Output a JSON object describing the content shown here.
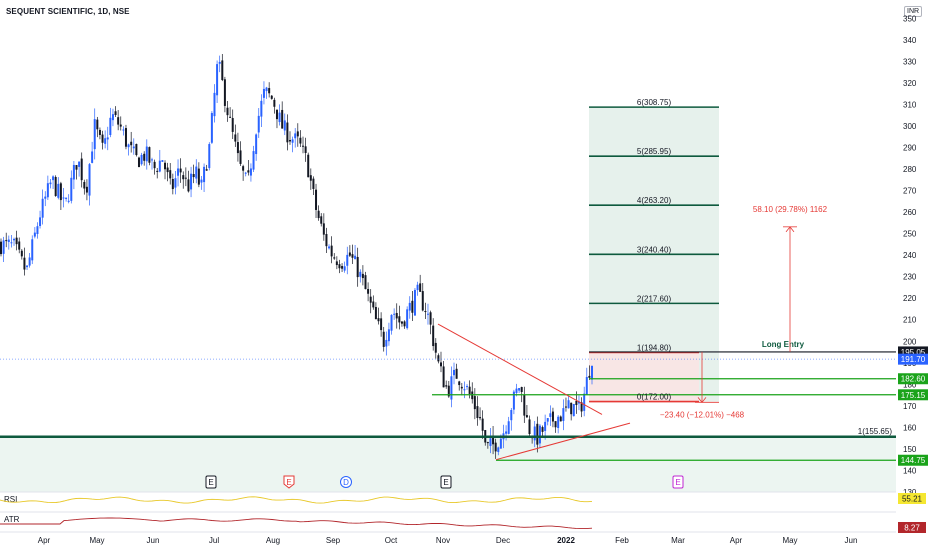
{
  "header": {
    "title": "SEQUENT SCIENTIFIC, 1D, NSE",
    "currency": "INR"
  },
  "colors": {
    "up": "#2962ff",
    "down": "#131722",
    "green": "#1aa31a",
    "dark_green": "#0e5a3e",
    "red": "#e53935",
    "fib_zone": "#e6f1ec",
    "loss_zone": "#fde4e4",
    "rsi": "#e8c829",
    "atr": "#b2262b"
  },
  "chart_data": {
    "type": "candlestick",
    "price_range": [
      130,
      352
    ],
    "y_ticks": [
      130,
      140,
      150,
      160,
      170,
      180,
      190,
      200,
      210,
      220,
      230,
      240,
      250,
      260,
      270,
      280,
      290,
      300,
      310,
      320,
      330,
      340,
      350
    ],
    "x_labels": [
      "Apr",
      "May",
      "Jun",
      "Jul",
      "Aug",
      "Sep",
      "Oct",
      "Nov",
      "Dec",
      "2022",
      "Feb",
      "Mar",
      "Apr",
      "May",
      "Jun"
    ],
    "price_path": [
      [
        0,
        245
      ],
      [
        3,
        244
      ],
      [
        6,
        232
      ],
      [
        9,
        258
      ],
      [
        12,
        275
      ],
      [
        15,
        262
      ],
      [
        18,
        285
      ],
      [
        20,
        270
      ],
      [
        22,
        300
      ],
      [
        24,
        288
      ],
      [
        26,
        305
      ],
      [
        28,
        300
      ],
      [
        30,
        290
      ],
      [
        32,
        284
      ],
      [
        34,
        287
      ],
      [
        36,
        280
      ],
      [
        38,
        285
      ],
      [
        40,
        270
      ],
      [
        42,
        280
      ],
      [
        44,
        272
      ],
      [
        46,
        278
      ],
      [
        47,
        270
      ],
      [
        49,
        290
      ],
      [
        50,
        310
      ],
      [
        51,
        330
      ],
      [
        52,
        320
      ],
      [
        54,
        300
      ],
      [
        56,
        282
      ],
      [
        58,
        272
      ],
      [
        60,
        300
      ],
      [
        62,
        316
      ],
      [
        64,
        312
      ],
      [
        66,
        300
      ],
      [
        68,
        295
      ],
      [
        70,
        292
      ],
      [
        72,
        283
      ],
      [
        74,
        262
      ],
      [
        76,
        248
      ],
      [
        78,
        240
      ],
      [
        80,
        237
      ],
      [
        82,
        240
      ],
      [
        84,
        233
      ],
      [
        86,
        222
      ],
      [
        88,
        210
      ],
      [
        90,
        200
      ],
      [
        92,
        215
      ],
      [
        94,
        208
      ],
      [
        96,
        215
      ],
      [
        98,
        222
      ],
      [
        100,
        215
      ],
      [
        101,
        207
      ],
      [
        103,
        188
      ],
      [
        105,
        177
      ],
      [
        107,
        185
      ],
      [
        109,
        180
      ],
      [
        111,
        172
      ],
      [
        113,
        162
      ],
      [
        114,
        150
      ],
      [
        116,
        152
      ],
      [
        118,
        157
      ],
      [
        120,
        170
      ],
      [
        122,
        180
      ],
      [
        123,
        170
      ],
      [
        124,
        160
      ],
      [
        126,
        155
      ],
      [
        128,
        160
      ],
      [
        130,
        164
      ],
      [
        132,
        166
      ],
      [
        134,
        170
      ],
      [
        136,
        168
      ],
      [
        137,
        174
      ],
      [
        139,
        193
      ]
    ],
    "earnings_markers": [
      {
        "label": "E",
        "x": 211,
        "style": "dark"
      },
      {
        "label": "E",
        "x": 289,
        "style": "red"
      },
      {
        "label": "D",
        "x": 346,
        "style": "blue"
      },
      {
        "label": "E",
        "x": 446,
        "style": "dark"
      },
      {
        "label": "E",
        "x": 678,
        "style": "magenta"
      }
    ],
    "fib_levels": [
      {
        "label": "0(172.00)",
        "value": 172.0
      },
      {
        "label": "1(194.80)",
        "value": 194.8
      },
      {
        "label": "2(217.60)",
        "value": 217.6
      },
      {
        "label": "3(240.40)",
        "value": 240.4
      },
      {
        "label": "4(263.20)",
        "value": 263.2
      },
      {
        "label": "5(285.95)",
        "value": 285.95
      },
      {
        "label": "6(308.75)",
        "value": 308.75
      }
    ],
    "support_line": {
      "label": "1(155.65)",
      "value": 155.65
    },
    "horizontal_levels": [
      175.15,
      182.6,
      144.75
    ],
    "long_entry": {
      "label": "Long Entry",
      "value": 195.05
    },
    "measure_up": {
      "label": "58.10 (29.78%) 1162",
      "from": 195.05,
      "to": 253.15
    },
    "measure_down": {
      "label": "−23.40 (−12.01%) −468",
      "from": 195.05,
      "to": 171.65
    },
    "triangle": {
      "upper": [
        [
          438,
          208
        ],
        [
          602,
          166
        ]
      ],
      "lower": [
        [
          496,
          145
        ],
        [
          630,
          162
        ]
      ]
    },
    "price_badges": [
      {
        "text": "195.05",
        "value": 195.05,
        "bg": "#131722"
      },
      {
        "text": "191.70",
        "value": 191.7,
        "bg": "#2962ff"
      },
      {
        "text": "182.60",
        "value": 182.6,
        "bg": "#1aa31a"
      },
      {
        "text": "175.15",
        "value": 175.15,
        "bg": "#1aa31a"
      },
      {
        "text": "144.75",
        "value": 144.75,
        "bg": "#1aa31a"
      }
    ],
    "last_price": 191.7,
    "rsi": {
      "label": "RSI",
      "value": "55.21"
    },
    "atr": {
      "label": "ATR",
      "value": "8.27"
    }
  }
}
